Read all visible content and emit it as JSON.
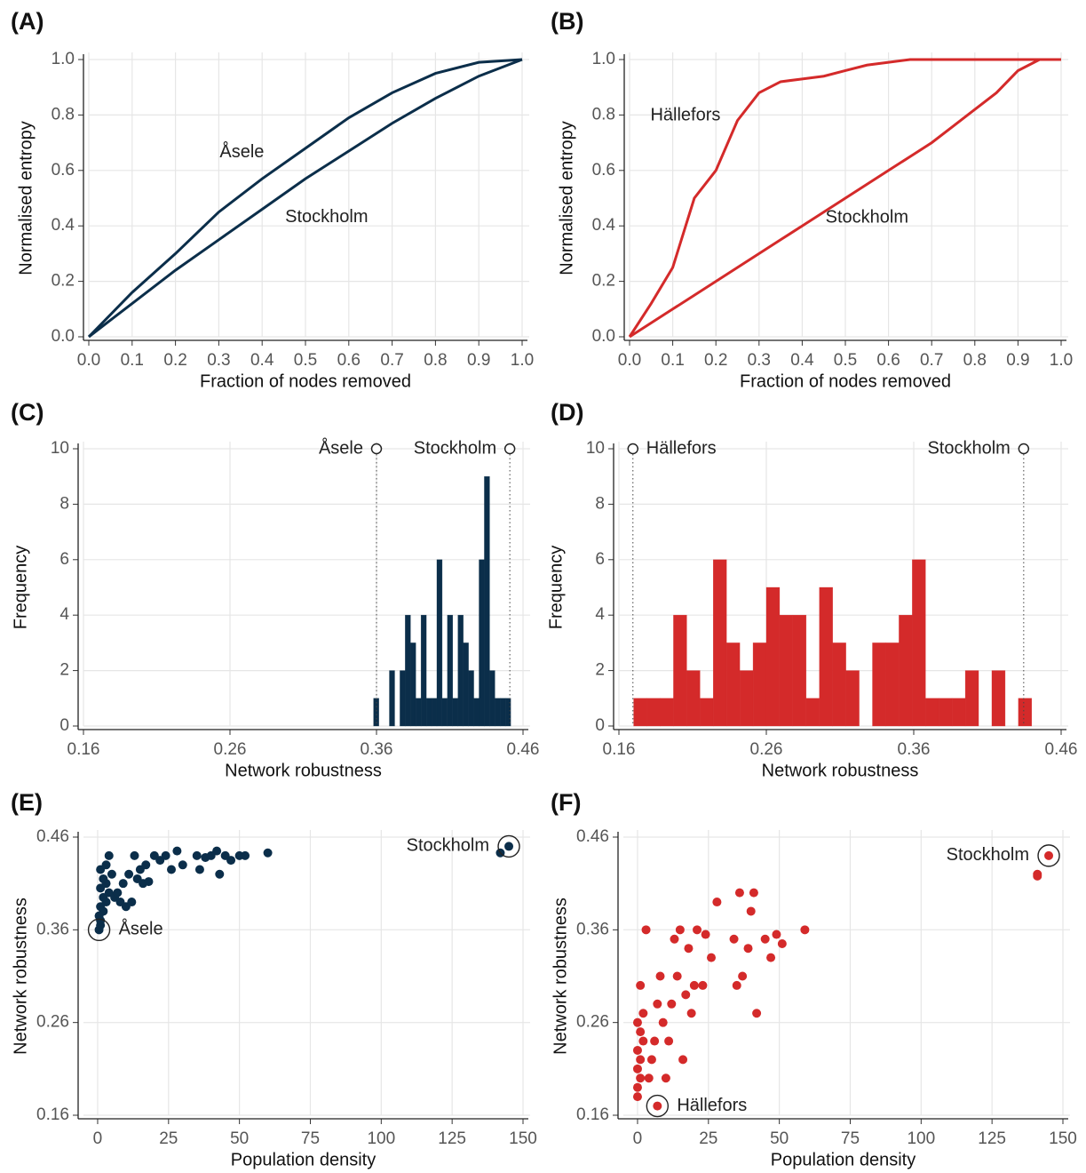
{
  "chart_data": [
    {
      "type": "line",
      "label": "(A)",
      "x_label": "Fraction of nodes removed",
      "y_label": "Normalised entropy",
      "x": [
        0,
        0.1,
        0.2,
        0.3,
        0.4,
        0.5,
        0.6,
        0.7,
        0.8,
        0.9,
        1.0
      ],
      "series": [
        {
          "name": "Åsele",
          "color": "#0b2e4a",
          "values": [
            0,
            0.16,
            0.3,
            0.45,
            0.57,
            0.68,
            0.79,
            0.88,
            0.95,
            0.99,
            1
          ]
        },
        {
          "name": "Stockholm",
          "color": "#0b2e4a",
          "values": [
            0,
            0.12,
            0.24,
            0.35,
            0.46,
            0.57,
            0.67,
            0.77,
            0.86,
            0.94,
            1
          ]
        }
      ],
      "xlim": [
        0,
        1
      ],
      "ylim": [
        0,
        1
      ],
      "grid": true,
      "xticks": [
        {
          "value": 0,
          "label": "0.0"
        },
        {
          "value": 0.1,
          "label": "0.1"
        },
        {
          "value": 0.2,
          "label": "0.2"
        },
        {
          "value": 0.3,
          "label": "0.3"
        },
        {
          "value": 0.4,
          "label": "0.4"
        },
        {
          "value": 0.5,
          "label": "0.5"
        },
        {
          "value": 0.6,
          "label": "0.6"
        },
        {
          "value": 0.7,
          "label": "0.7"
        },
        {
          "value": 0.8,
          "label": "0.8"
        },
        {
          "value": 0.9,
          "label": "0.9"
        },
        {
          "value": 1,
          "label": "1.0"
        }
      ],
      "yticks": [
        {
          "value": 0,
          "label": "0.0"
        },
        {
          "value": 0.2,
          "label": "0.2"
        },
        {
          "value": 0.4,
          "label": "0.4"
        },
        {
          "value": 0.6,
          "label": "0.6"
        },
        {
          "value": 0.8,
          "label": "0.8"
        },
        {
          "value": 1,
          "label": "1.0"
        }
      ]
    },
    {
      "type": "line",
      "label": "(B)",
      "x_label": "Fraction of nodes removed",
      "y_label": "Normalised entropy",
      "x": [
        0,
        0.05,
        0.1,
        0.15,
        0.2,
        0.25,
        0.3,
        0.35,
        0.4,
        0.45,
        0.5,
        0.55,
        0.6,
        0.65,
        0.7,
        0.75,
        0.8,
        0.85,
        0.9,
        0.95,
        1.0
      ],
      "series": [
        {
          "name": "Hällefors",
          "color": "#d42a2a",
          "values": [
            0,
            0.12,
            0.25,
            0.5,
            0.6,
            0.78,
            0.88,
            0.92,
            0.93,
            0.94,
            0.96,
            0.98,
            0.99,
            1,
            1,
            1,
            1,
            1,
            1,
            1,
            1
          ]
        },
        {
          "name": "Stockholm",
          "color": "#d42a2a",
          "values": [
            0,
            0.05,
            0.1,
            0.15,
            0.2,
            0.25,
            0.3,
            0.35,
            0.4,
            0.45,
            0.5,
            0.55,
            0.6,
            0.65,
            0.7,
            0.76,
            0.82,
            0.88,
            0.96,
            1,
            1
          ]
        }
      ],
      "xlim": [
        0,
        1
      ],
      "ylim": [
        0,
        1
      ],
      "grid": true,
      "xticks": [
        {
          "value": 0,
          "label": "0.0"
        },
        {
          "value": 0.1,
          "label": "0.1"
        },
        {
          "value": 0.2,
          "label": "0.2"
        },
        {
          "value": 0.3,
          "label": "0.3"
        },
        {
          "value": 0.4,
          "label": "0.4"
        },
        {
          "value": 0.5,
          "label": "0.5"
        },
        {
          "value": 0.6,
          "label": "0.6"
        },
        {
          "value": 0.7,
          "label": "0.7"
        },
        {
          "value": 0.8,
          "label": "0.8"
        },
        {
          "value": 0.9,
          "label": "0.9"
        },
        {
          "value": 1,
          "label": "1.0"
        }
      ],
      "yticks": [
        {
          "value": 0,
          "label": "0.0"
        },
        {
          "value": 0.2,
          "label": "0.2"
        },
        {
          "value": 0.4,
          "label": "0.4"
        },
        {
          "value": 0.6,
          "label": "0.6"
        },
        {
          "value": 0.8,
          "label": "0.8"
        },
        {
          "value": 1,
          "label": "1.0"
        }
      ]
    },
    {
      "type": "histogram",
      "label": "(C)",
      "x_label": "Network robustness",
      "y_label": "Frequency",
      "color": "#0b2e4a",
      "bins": [
        0.358,
        0.3616,
        0.3652,
        0.3688,
        0.3724,
        0.376,
        0.3796,
        0.3832,
        0.3868,
        0.3904,
        0.394,
        0.3976,
        0.4012,
        0.4048,
        0.4084,
        0.412,
        0.4156,
        0.4192,
        0.4228,
        0.4264,
        0.43,
        0.4336,
        0.4372,
        0.4408,
        0.4444,
        0.448,
        0.4516
      ],
      "values": [
        1,
        0,
        0,
        2,
        0,
        2,
        4,
        3,
        1,
        4,
        1,
        1,
        6,
        1,
        4,
        1,
        4,
        3,
        2,
        1,
        6,
        9,
        2,
        1,
        1,
        1
      ],
      "markers": [
        {
          "label": "Åsele",
          "value": 0.36
        },
        {
          "label": "Stockholm",
          "value": 0.451
        }
      ],
      "xlim": [
        0.16,
        0.46
      ],
      "ylim": [
        0,
        10
      ],
      "grid": true,
      "xticks": [
        0.16,
        0.26,
        0.36,
        0.46
      ],
      "yticks": [
        0,
        2,
        4,
        6,
        8,
        10
      ]
    },
    {
      "type": "histogram",
      "label": "(D)",
      "x_label": "Network robustness",
      "y_label": "Frequency",
      "color": "#d42a2a",
      "bins": [
        0.17,
        0.179,
        0.188,
        0.197,
        0.206,
        0.215,
        0.224,
        0.233,
        0.242,
        0.251,
        0.26,
        0.269,
        0.278,
        0.287,
        0.296,
        0.305,
        0.314,
        0.323,
        0.332,
        0.341,
        0.35,
        0.359,
        0.368,
        0.377,
        0.386,
        0.395,
        0.404,
        0.413,
        0.422,
        0.431,
        0.44
      ],
      "values": [
        1,
        1,
        1,
        4,
        2,
        1,
        6,
        3,
        2,
        3,
        5,
        4,
        4,
        1,
        5,
        3,
        2,
        0,
        3,
        3,
        4,
        6,
        1,
        1,
        1,
        2,
        0,
        2,
        0,
        1
      ],
      "markers": [
        {
          "label": "Hällefors",
          "value": 0.1695
        },
        {
          "label": "Stockholm",
          "value": 0.4346
        }
      ],
      "xlim": [
        0.16,
        0.46
      ],
      "ylim": [
        0,
        10
      ],
      "grid": true,
      "xticks": [
        0.16,
        0.26,
        0.36,
        0.46
      ],
      "yticks": [
        0,
        2,
        4,
        6,
        8,
        10
      ]
    },
    {
      "type": "scatter",
      "label": "(E)",
      "x_label": "Population density",
      "y_label": "Network robustness",
      "color": "#0b2e4a",
      "x": [
        1,
        1,
        0.5,
        2,
        1,
        3,
        2,
        4,
        1,
        3,
        2,
        5,
        1,
        3,
        4,
        6,
        8,
        10,
        7,
        12,
        9,
        11,
        14,
        16,
        18,
        15,
        17,
        13,
        20,
        22,
        24,
        26,
        28,
        30,
        35,
        36,
        38,
        40,
        42,
        43,
        45,
        47,
        50,
        52,
        60,
        142
      ],
      "values": [
        0.365,
        0.37,
        0.375,
        0.38,
        0.385,
        0.39,
        0.395,
        0.4,
        0.405,
        0.41,
        0.415,
        0.42,
        0.425,
        0.43,
        0.44,
        0.395,
        0.39,
        0.385,
        0.4,
        0.39,
        0.41,
        0.42,
        0.415,
        0.41,
        0.412,
        0.425,
        0.43,
        0.44,
        0.44,
        0.435,
        0.44,
        0.425,
        0.445,
        0.43,
        0.44,
        0.425,
        0.438,
        0.44,
        0.445,
        0.42,
        0.44,
        0.435,
        0.44,
        0.44,
        0.443,
        0.443
      ],
      "labeled_points": [
        {
          "label": "Stockholm",
          "x": 145,
          "y": 0.45
        },
        {
          "label": "Åsele",
          "x": 0.5,
          "y": 0.36
        }
      ],
      "xlim": [
        -5,
        150
      ],
      "ylim": [
        0.16,
        0.46
      ],
      "grid": true,
      "xticks": [
        0,
        25,
        50,
        75,
        100,
        125,
        150
      ],
      "yticks": [
        0.16,
        0.26,
        0.36,
        0.46
      ]
    },
    {
      "type": "scatter",
      "label": "(F)",
      "x_label": "Population density",
      "y_label": "Network robustness",
      "color": "#d42a2a",
      "x": [
        0,
        0,
        1,
        0,
        1,
        0,
        2,
        1,
        0,
        2,
        1,
        3,
        4,
        5,
        6,
        7,
        8,
        9,
        10,
        11,
        12,
        13,
        14,
        15,
        16,
        17,
        18,
        19,
        20,
        21,
        23,
        24,
        26,
        28,
        34,
        35,
        36,
        37,
        39,
        40,
        41,
        42,
        45,
        47,
        49,
        51,
        59,
        141,
        141
      ],
      "values": [
        0.18,
        0.19,
        0.2,
        0.21,
        0.22,
        0.23,
        0.24,
        0.25,
        0.26,
        0.27,
        0.3,
        0.36,
        0.2,
        0.22,
        0.24,
        0.28,
        0.31,
        0.26,
        0.2,
        0.24,
        0.28,
        0.35,
        0.31,
        0.36,
        0.22,
        0.29,
        0.34,
        0.27,
        0.3,
        0.36,
        0.3,
        0.355,
        0.33,
        0.39,
        0.35,
        0.3,
        0.4,
        0.31,
        0.34,
        0.38,
        0.4,
        0.27,
        0.35,
        0.33,
        0.355,
        0.345,
        0.36,
        0.42,
        0.418
      ],
      "labeled_points": [
        {
          "label": "Stockholm",
          "x": 145,
          "y": 0.44
        },
        {
          "label": "Hällefors",
          "x": 7,
          "y": 0.17
        }
      ],
      "xlim": [
        -5,
        150
      ],
      "ylim": [
        0.16,
        0.46
      ],
      "grid": true,
      "xticks": [
        0,
        25,
        50,
        75,
        100,
        125,
        150
      ],
      "yticks": [
        0.16,
        0.26,
        0.36,
        0.46
      ]
    }
  ]
}
